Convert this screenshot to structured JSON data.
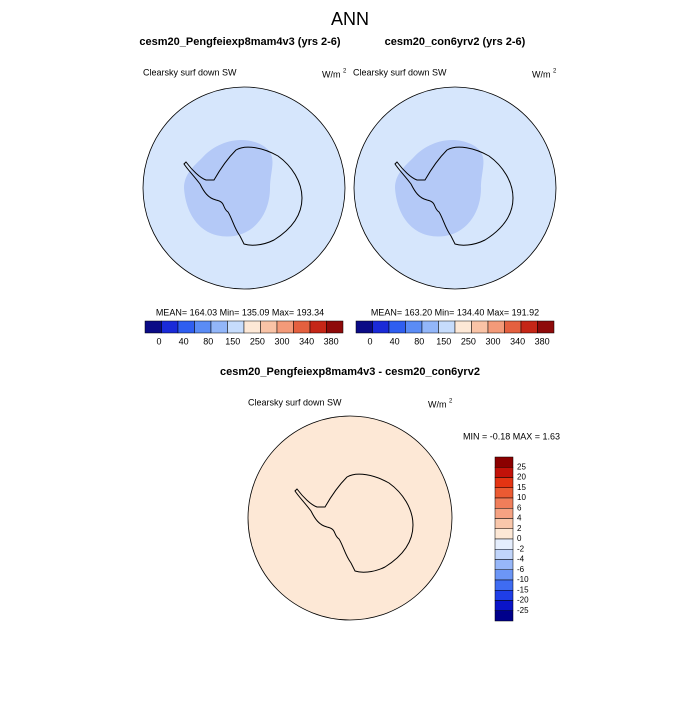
{
  "title": "ANN",
  "panels": [
    {
      "title": "cesm20_Pengfeiexp8mam4v3 (yrs 2-6)",
      "label": "Clearsky surf down SW",
      "units": "W/m",
      "units_sup": "2",
      "stats": "MEAN= 164.03  Min= 135.09  Max= 193.34"
    },
    {
      "title": "cesm20_con6yrv2 (yrs 2-6)",
      "label": "Clearsky surf down SW",
      "units": "W/m",
      "units_sup": "2",
      "stats": "MEAN= 163.20  Min= 134.40  Max= 191.92"
    }
  ],
  "colorbar_labels": [
    "0",
    "40",
    "80",
    "150",
    "250",
    "300",
    "340",
    "380"
  ],
  "difference": {
    "title": "cesm20_Pengfeiexp8mam4v3 - cesm20_con6yrv2",
    "label": "Clearsky surf down SW",
    "units": "W/m",
    "units_sup": "2",
    "stats": "MIN =  -0.18 MAX =   1.63",
    "colorbar_labels": [
      "25",
      "20",
      "15",
      "10",
      "6",
      "4",
      "2",
      "0",
      "-2",
      "-4",
      "-6",
      "-10",
      "-15",
      "-20",
      "-25"
    ]
  }
}
